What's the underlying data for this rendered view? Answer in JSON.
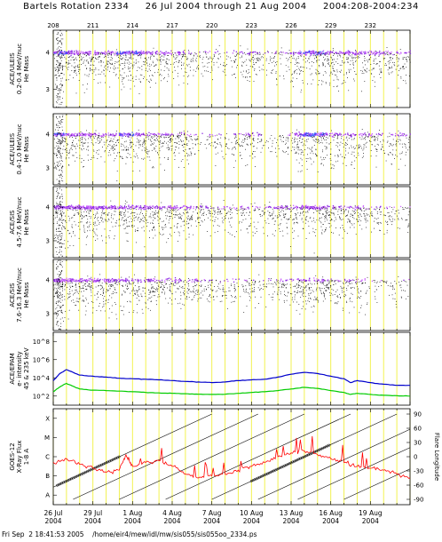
{
  "header": {
    "title": "Bartels Rotation 2334     26 Jul 2004 through 21 Aug 2004     2004:208-2004:234"
  },
  "footer": {
    "text": "Fri Sep  2 18:41:53 2005    /home/eir4/mew/idl/mw/sis055/sis055oo_2334.ps"
  },
  "top_doy_ticks": [
    "208",
    "211",
    "214",
    "217",
    "220",
    "223",
    "226",
    "229",
    "232"
  ],
  "chart_data": [
    {
      "type": "scatter",
      "panel": "ace-uleis-1",
      "ylabel": [
        "ACE/ULEIS",
        "0.2-0.4 MeV/nuc",
        "He Mass"
      ],
      "yticks": [
        "4",
        "3"
      ],
      "x_range": [
        208,
        235
      ],
      "y_range": [
        2.5,
        4.6
      ],
      "colors": [
        "#000000",
        "#8a2be2",
        "#3355ff",
        "#cc66ff"
      ],
      "activity": [
        [
          208,
          0.8
        ],
        [
          210,
          0.7
        ],
        [
          212,
          0.6
        ],
        [
          213.5,
          0.9
        ],
        [
          215,
          0.7
        ],
        [
          217,
          0.5
        ],
        [
          219,
          0.3
        ],
        [
          221,
          0.1
        ],
        [
          222.8,
          0.5
        ],
        [
          224,
          0.1
        ],
        [
          225.5,
          0.3
        ],
        [
          227,
          0.9
        ],
        [
          229,
          0.7
        ],
        [
          231,
          0.5
        ],
        [
          233,
          0.5
        ],
        [
          235,
          0.4
        ]
      ]
    },
    {
      "type": "scatter",
      "panel": "ace-uleis-2",
      "ylabel": [
        "ACE/ULEIS",
        "0.4-1.0 MeV/nuc",
        "He Mass"
      ],
      "yticks": [
        "4",
        "3"
      ],
      "x_range": [
        208,
        235
      ],
      "y_range": [
        2.5,
        4.6
      ],
      "colors": [
        "#000000",
        "#8a2be2",
        "#3355ff",
        "#cc66ff"
      ],
      "activity": [
        [
          208,
          0.8
        ],
        [
          210,
          0.7
        ],
        [
          212,
          0.6
        ],
        [
          213.5,
          0.9
        ],
        [
          215,
          0.6
        ],
        [
          217,
          0.4
        ],
        [
          219,
          0.2
        ],
        [
          221,
          0.1
        ],
        [
          222.8,
          0.5
        ],
        [
          224,
          0.05
        ],
        [
          225.5,
          0.2
        ],
        [
          227,
          0.9
        ],
        [
          229,
          0.7
        ],
        [
          231,
          0.4
        ],
        [
          233,
          0.4
        ],
        [
          235,
          0.3
        ]
      ]
    },
    {
      "type": "scatter",
      "panel": "ace-sis-1",
      "ylabel": [
        "ACE/SIS",
        "4.5-7.6 MeV/nuc",
        "He Mass"
      ],
      "yticks": [
        "4",
        "3"
      ],
      "x_range": [
        208,
        235
      ],
      "y_range": [
        2.5,
        4.6
      ],
      "colors": [
        "#000000",
        "#8a2be2",
        "#cc66ff"
      ],
      "activity": [
        [
          208,
          1.0
        ],
        [
          210,
          0.9
        ],
        [
          212,
          0.8
        ],
        [
          214,
          0.7
        ],
        [
          216,
          0.6
        ],
        [
          218,
          0.5
        ],
        [
          220,
          0.35
        ],
        [
          222,
          0.3
        ],
        [
          224,
          0.25
        ],
        [
          226,
          0.5
        ],
        [
          227.5,
          0.8
        ],
        [
          229,
          0.4
        ],
        [
          230.5,
          0.6
        ],
        [
          232,
          0.2
        ],
        [
          235,
          0.1
        ]
      ]
    },
    {
      "type": "scatter",
      "panel": "ace-sis-2",
      "ylabel": [
        "ACE/SIS",
        "7.6-16.3 MeV/nuc",
        "He Mass"
      ],
      "yticks": [
        "4",
        "3"
      ],
      "x_range": [
        208,
        235
      ],
      "y_range": [
        2.5,
        4.6
      ],
      "colors": [
        "#000000",
        "#8a2be2",
        "#cc66ff"
      ],
      "activity": [
        [
          208,
          0.9
        ],
        [
          210,
          0.8
        ],
        [
          212,
          0.7
        ],
        [
          214,
          0.6
        ],
        [
          216,
          0.5
        ],
        [
          218,
          0.4
        ],
        [
          220,
          0.3
        ],
        [
          222,
          0.2
        ],
        [
          224,
          0.2
        ],
        [
          226,
          0.35
        ],
        [
          227.5,
          0.6
        ],
        [
          229,
          0.3
        ],
        [
          230.5,
          0.45
        ],
        [
          232,
          0.1
        ],
        [
          235,
          0.05
        ]
      ]
    },
    {
      "type": "line",
      "panel": "ace-epam",
      "ylabel": [
        "ACE/EPAM",
        "e- intensity",
        "45 & 235 keV"
      ],
      "yscale": "log",
      "y_range": [
        10,
        1000000000
      ],
      "yticks": [
        "10^8",
        "10^6",
        "10^4",
        "10^2"
      ],
      "series": [
        {
          "color": "#0000cc",
          "x": [
            208,
            208.5,
            209,
            209.5,
            210,
            211,
            212,
            213,
            214,
            215,
            216,
            217,
            218,
            219,
            220,
            221,
            222,
            223,
            224,
            225,
            226,
            227,
            228,
            229,
            230,
            230.5,
            231,
            232,
            233,
            234,
            235
          ],
          "y": [
            5000,
            30000,
            80000,
            40000,
            20000,
            15000,
            12000,
            9000,
            8000,
            7000,
            6000,
            5000,
            4000,
            3500,
            3000,
            3500,
            5000,
            6000,
            7000,
            12000,
            25000,
            40000,
            30000,
            15000,
            8000,
            3000,
            5000,
            3000,
            2000,
            1500,
            1500
          ]
        },
        {
          "color": "#00cc00",
          "x": [
            208,
            208.5,
            209,
            209.5,
            210,
            211,
            212,
            213,
            214,
            215,
            216,
            217,
            218,
            219,
            220,
            221,
            222,
            223,
            224,
            225,
            226,
            227,
            228,
            229,
            230,
            230.5,
            231,
            232,
            233,
            234,
            235
          ],
          "y": [
            300,
            1000,
            2500,
            1200,
            600,
            450,
            400,
            350,
            300,
            250,
            220,
            200,
            180,
            160,
            150,
            160,
            200,
            250,
            300,
            400,
            600,
            900,
            700,
            400,
            250,
            150,
            200,
            150,
            120,
            110,
            100
          ]
        }
      ]
    },
    {
      "type": "line",
      "panel": "goes-12",
      "ylabel": [
        "GOES-12",
        "X-Ray Flux",
        "1-8 A"
      ],
      "yticks_left": [
        "X",
        "M",
        "C",
        "B",
        "A"
      ],
      "yticks_right": [
        "90",
        "60",
        "30",
        "0",
        "-30",
        "-60",
        "-90"
      ],
      "ylabel_right": "Flare Longitude",
      "x_range": [
        208,
        235
      ],
      "series": [
        {
          "color": "#ff0000",
          "x": [
            208,
            209,
            210,
            211,
            212,
            213,
            213.5,
            214,
            215,
            216,
            217,
            218,
            219,
            220,
            221,
            222,
            223,
            224,
            225,
            226,
            227,
            228,
            229,
            230,
            231,
            232,
            233,
            234,
            235
          ],
          "y": [
            2.2,
            2.4,
            2.1,
            1.9,
            1.7,
            1.8,
            2.6,
            2.0,
            2.2,
            2.3,
            2.0,
            1.6,
            1.4,
            1.5,
            1.6,
            1.8,
            2.0,
            2.2,
            2.5,
            2.7,
            2.8,
            2.6,
            2.4,
            2.2,
            2.0,
            1.9,
            1.8,
            1.6,
            1.4
          ]
        }
      ]
    }
  ],
  "date_labels": [
    {
      "day": "26 Jul",
      "year": "2004"
    },
    {
      "day": "29 Jul",
      "year": "2004"
    },
    {
      "day": "1 Aug",
      "year": "2004"
    },
    {
      "day": "4 Aug",
      "year": "2004"
    },
    {
      "day": "7 Aug",
      "year": "2004"
    },
    {
      "day": "10 Aug",
      "year": "2004"
    },
    {
      "day": "13 Aug",
      "year": "2004"
    },
    {
      "day": "16 Aug",
      "year": "2004"
    },
    {
      "day": "19 Aug",
      "year": "2004"
    }
  ]
}
